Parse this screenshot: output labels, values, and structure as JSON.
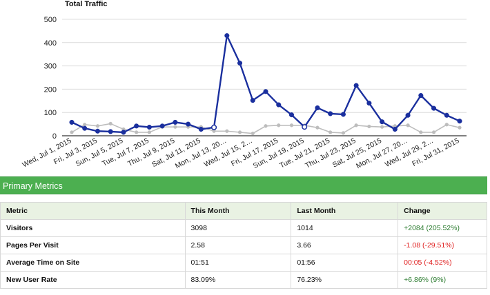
{
  "chart_data": {
    "type": "line",
    "title": "Total Traffic",
    "ylim": [
      0,
      500
    ],
    "yticks": [
      0,
      100,
      200,
      300,
      400,
      500
    ],
    "grid": true,
    "x": [
      "Jul 1",
      "Jul 2",
      "Jul 3",
      "Jul 4",
      "Jul 5",
      "Jul 6",
      "Jul 7",
      "Jul 8",
      "Jul 9",
      "Jul 10",
      "Jul 11",
      "Jul 12",
      "Jul 13",
      "Jul 14",
      "Jul 15",
      "Jul 16",
      "Jul 17",
      "Jul 18",
      "Jul 19",
      "Jul 20",
      "Jul 21",
      "Jul 22",
      "Jul 23",
      "Jul 24",
      "Jul 25",
      "Jul 26",
      "Jul 27",
      "Jul 28",
      "Jul 29",
      "Jul 30",
      "Jul 31"
    ],
    "x_tick_labels": [
      "Wed, Jul 1, 2015",
      "Fri, Jul 3, 2015",
      "Sun, Jul 5, 2015",
      "Tue, Jul 7, 2015",
      "Thu, Jul 9, 2015",
      "Sat, Jul 11, 2015",
      "Mon, Jul 13, 20…",
      "Wed, Jul 15, 2…",
      "Fri, Jul 17, 2015",
      "Sun, Jul 19, 2015",
      "Tue, Jul 21, 2015",
      "Thu, Jul 23, 2015",
      "Sat, Jul 25, 2015",
      "Mon, Jul 27, 20…",
      "Wed, Jul 29, 2…",
      "Fri, Jul 31, 2015"
    ],
    "series": [
      {
        "color": "#1a2f9e",
        "values": [
          58,
          32,
          20,
          18,
          15,
          42,
          37,
          42,
          58,
          50,
          28,
          36,
          430,
          312,
          152,
          190,
          133,
          90,
          38,
          120,
          95,
          92,
          216,
          140,
          60,
          28,
          88,
          173,
          118,
          88,
          63
        ],
        "hollow_indices": [
          11,
          18
        ]
      },
      {
        "color": "#bdbdbd",
        "values": [
          15,
          48,
          42,
          52,
          28,
          15,
          15,
          38,
          38,
          38,
          38,
          20,
          20,
          15,
          10,
          42,
          45,
          45,
          45,
          35,
          15,
          12,
          45,
          40,
          38,
          42,
          45,
          15,
          15,
          48,
          35
        ]
      }
    ]
  },
  "metrics": {
    "title": "Primary Metrics",
    "headers": [
      "Metric",
      "This Month",
      "Last Month",
      "Change"
    ],
    "rows": [
      {
        "metric": "Visitors",
        "this_month": "3098",
        "last_month": "1014",
        "change": "+2084 (205.52%)",
        "change_color": "#2e7d32"
      },
      {
        "metric": "Pages Per Visit",
        "this_month": "2.58",
        "last_month": "3.66",
        "change": "-1.08 (-29.51%)",
        "change_color": "#e02020"
      },
      {
        "metric": "Average Time on Site",
        "this_month": "01:51",
        "last_month": "01:56",
        "change": "00:05 (-4.52%)",
        "change_color": "#e02020"
      },
      {
        "metric": "New User Rate",
        "this_month": "83.09%",
        "last_month": "76.23%",
        "change": "+6.86% (9%)",
        "change_color": "#2e7d32"
      }
    ]
  },
  "colors": {
    "header_green": "#4caf50",
    "table_header_bg": "#e9f2e3"
  }
}
